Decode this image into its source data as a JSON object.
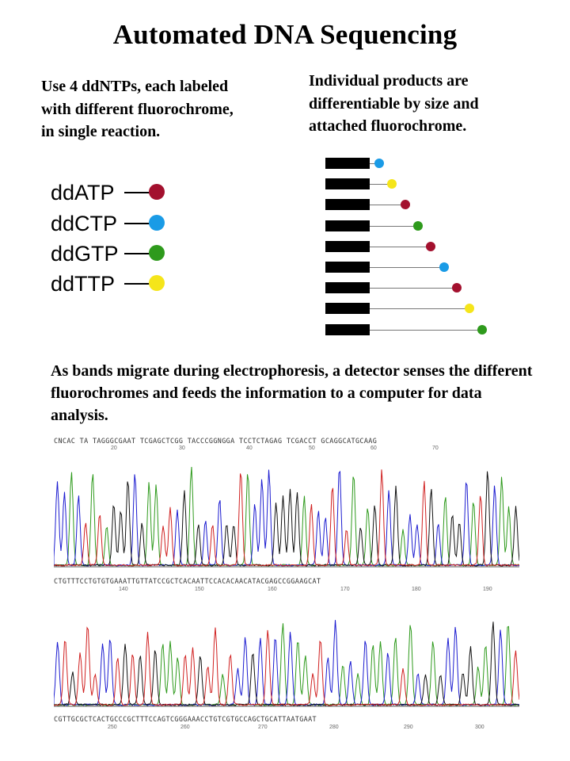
{
  "title": "Automated DNA Sequencing",
  "left_text": "Use 4 ddNTPs, each labeled with different fluorochrome, in single reaction.",
  "right_text": "Individual products are differentiable by size and attached fluorochrome.",
  "bottom_text": "As bands migrate during electrophoresis, a detector senses the different fluorochromes and feeds the information to a computer for data analysis.",
  "colors": {
    "A": "#a3102e",
    "C": "#1a9be6",
    "G": "#2e9a1c",
    "T": "#f5e51a"
  },
  "ddntps": [
    {
      "label": "ddATP",
      "base": "A"
    },
    {
      "label": "ddCTP",
      "base": "C"
    },
    {
      "label": "ddGTP",
      "base": "G"
    },
    {
      "label": "ddTTP",
      "base": "T"
    }
  ],
  "bands": [
    "C",
    "T",
    "A",
    "G",
    "A",
    "C",
    "A",
    "T",
    "G"
  ],
  "traces": [
    {
      "sequence": "CNCAC TA TAGGGCGAAT TCGAGCTCGG TACCCGGNGGA TCCTCTAGAG TCGACCT GCAGGCATGCAAG",
      "ticks": [
        "20",
        "30",
        "40",
        "50",
        "60",
        "70"
      ]
    },
    {
      "sequence": "CTGTTTCCTGTGTGAAATTGTTATCCGCTCACAATTCCACACAACATACGAGCCGGAAGCAT",
      "ticks": [
        "140",
        "150",
        "160",
        "170",
        "180",
        "190"
      ]
    },
    {
      "sequence": "CGTTGCGCTCACTGCCCGCTTTCCAGTCGGGAAACCTGTCGTGCCAGCTGCATTAATGAAT",
      "ticks": [
        "250",
        "260",
        "270",
        "280",
        "290",
        "300"
      ]
    }
  ]
}
